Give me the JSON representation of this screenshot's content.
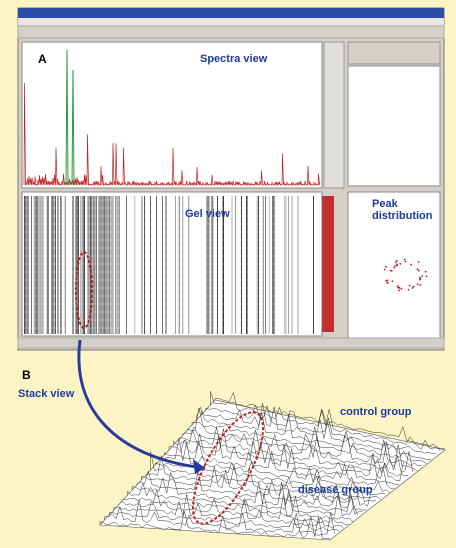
{
  "panel_a": {
    "label": "A",
    "spectra_title": "Spectra view",
    "gel_title": "Gel view",
    "peak_title": "Peak distribution"
  },
  "panel_b": {
    "label": "B",
    "stack_title": "Stack view",
    "control_label": "control group",
    "disease_label": "disease group"
  }
}
